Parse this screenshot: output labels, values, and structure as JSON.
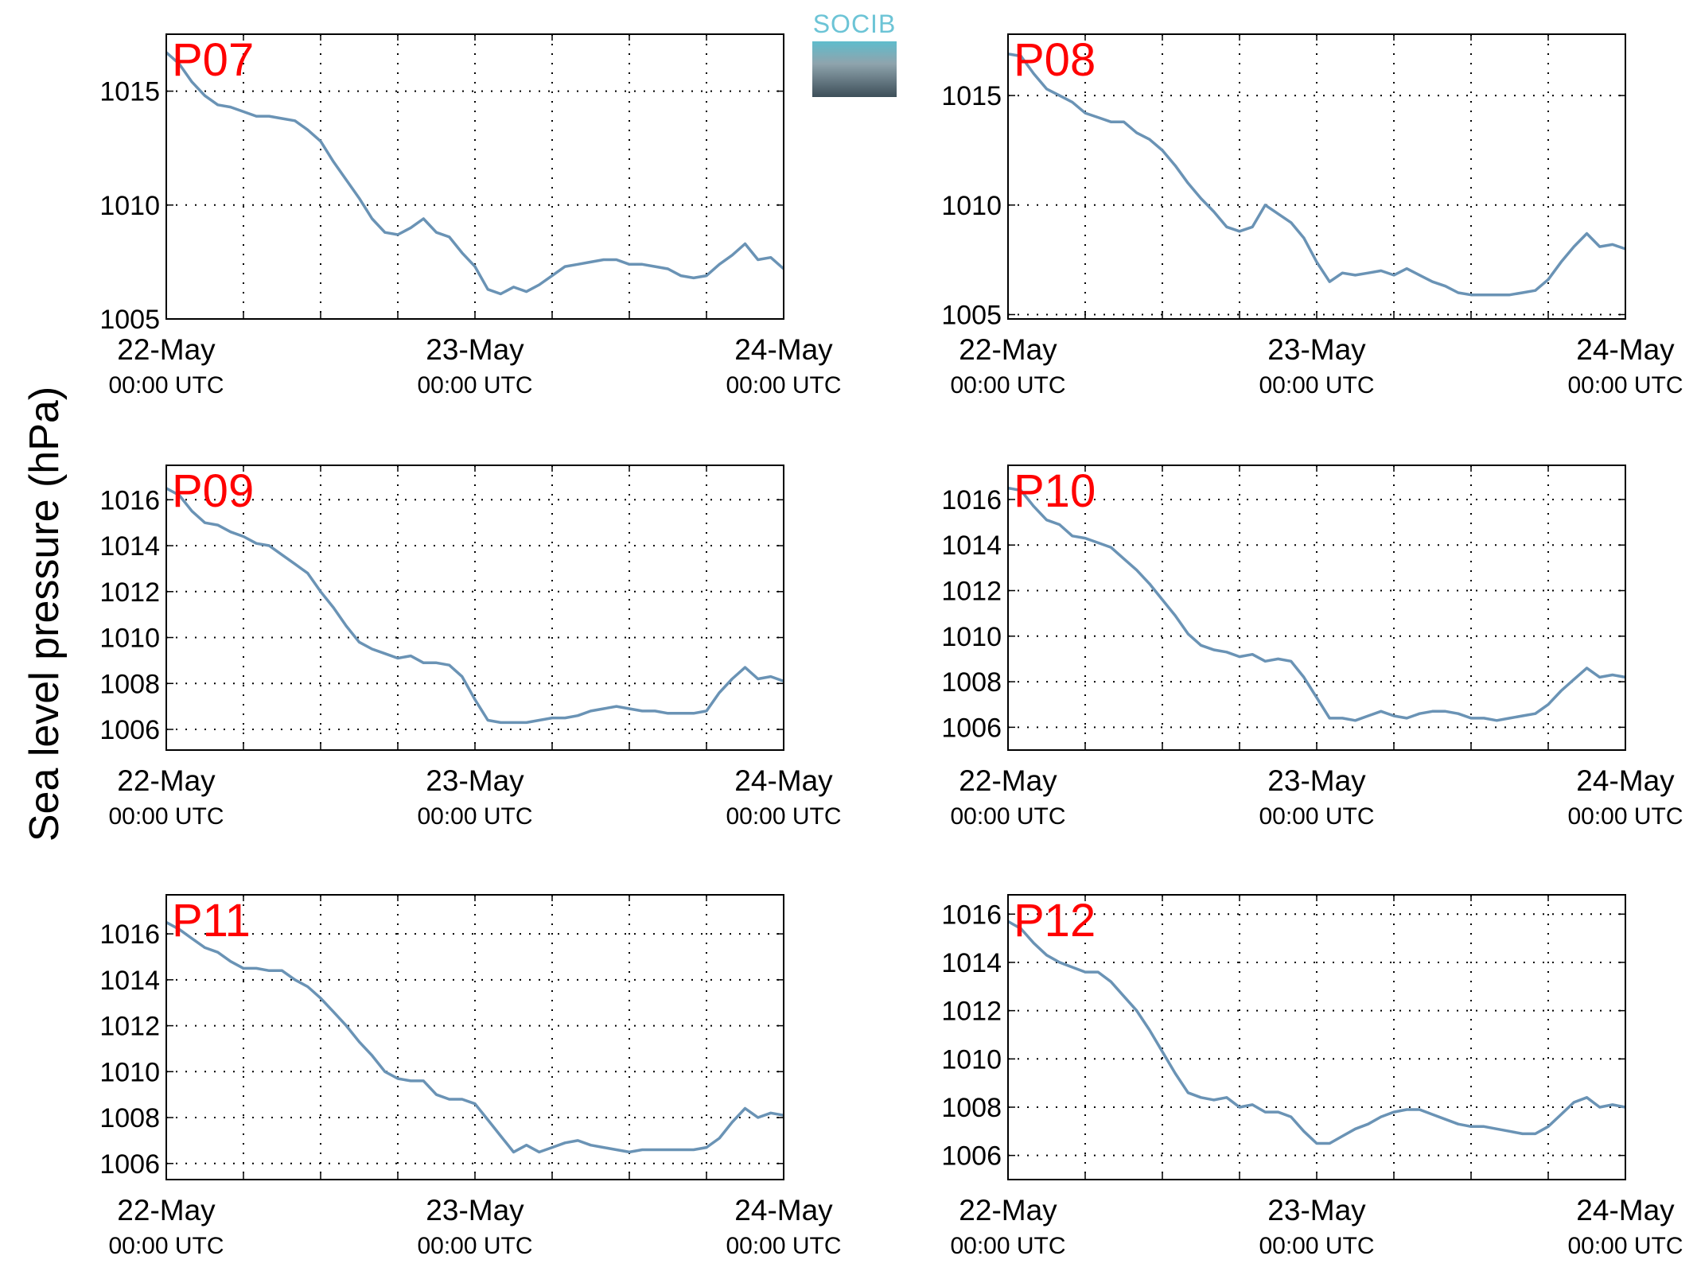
{
  "figure": {
    "ylabel": "Sea level pressure (hPa)",
    "logo": "SOCIB",
    "line_color": "#6a93b5",
    "label_color": "#ff0000",
    "grid": true
  },
  "chart_data": [
    {
      "type": "line",
      "label": "P07",
      "x_ticks": [
        "22-May\n00:00 UTC",
        "23-May\n00:00 UTC",
        "24-May\n00:00 UTC"
      ],
      "xlim": [
        0,
        48
      ],
      "ylim": [
        1005,
        1017.5
      ],
      "yticks": [
        1005,
        1010,
        1015
      ],
      "series": [
        {
          "x": [
            0,
            1,
            2,
            3,
            4,
            5,
            6,
            7,
            8,
            9,
            10,
            11,
            12,
            13,
            14,
            15,
            16,
            17,
            18,
            19,
            20,
            21,
            22,
            23,
            24,
            25,
            26,
            27,
            28,
            29,
            30,
            31,
            32,
            33,
            34,
            35,
            36,
            37,
            38,
            39,
            40,
            41,
            42,
            43,
            44,
            45,
            46,
            47,
            48
          ],
          "y": [
            1016.7,
            1016.2,
            1015.4,
            1014.8,
            1014.4,
            1014.3,
            1014.1,
            1013.9,
            1013.9,
            1013.8,
            1013.7,
            1013.3,
            1012.8,
            1011.9,
            1011.1,
            1010.3,
            1009.4,
            1008.8,
            1008.7,
            1009.0,
            1009.4,
            1008.8,
            1008.6,
            1007.9,
            1007.3,
            1006.3,
            1006.1,
            1006.4,
            1006.2,
            1006.5,
            1006.9,
            1007.3,
            1007.4,
            1007.5,
            1007.6,
            1007.6,
            1007.4,
            1007.4,
            1007.3,
            1007.2,
            1006.9,
            1006.8,
            1006.9,
            1007.4,
            1007.8,
            1008.3,
            1007.6,
            1007.7,
            1007.2
          ]
        }
      ]
    },
    {
      "type": "line",
      "label": "P08",
      "x_ticks": [
        "22-May\n00:00 UTC",
        "23-May\n00:00 UTC",
        "24-May\n00:00 UTC"
      ],
      "xlim": [
        0,
        48
      ],
      "ylim": [
        1004.8,
        1017.8
      ],
      "yticks": [
        1005,
        1010,
        1015
      ],
      "series": [
        {
          "x": [
            0,
            1,
            2,
            3,
            4,
            5,
            6,
            7,
            8,
            9,
            10,
            11,
            12,
            13,
            14,
            15,
            16,
            17,
            18,
            19,
            20,
            21,
            22,
            23,
            24,
            25,
            26,
            27,
            28,
            29,
            30,
            31,
            32,
            33,
            34,
            35,
            36,
            37,
            38,
            39,
            40,
            41,
            42,
            43,
            44,
            45,
            46,
            47,
            48
          ],
          "y": [
            1016.9,
            1016.8,
            1016.0,
            1015.3,
            1015.0,
            1014.7,
            1014.2,
            1014.0,
            1013.8,
            1013.8,
            1013.3,
            1013.0,
            1012.5,
            1011.8,
            1011.0,
            1010.3,
            1009.7,
            1009.0,
            1008.8,
            1009.0,
            1010.0,
            1009.6,
            1009.2,
            1008.5,
            1007.4,
            1006.5,
            1006.9,
            1006.8,
            1006.9,
            1007.0,
            1006.8,
            1007.1,
            1006.8,
            1006.5,
            1006.3,
            1006.0,
            1005.9,
            1005.9,
            1005.9,
            1005.9,
            1006.0,
            1006.1,
            1006.6,
            1007.4,
            1008.1,
            1008.7,
            1008.1,
            1008.2,
            1008.0
          ]
        }
      ]
    },
    {
      "type": "line",
      "label": "P09",
      "x_ticks": [
        "22-May\n00:00 UTC",
        "23-May\n00:00 UTC",
        "24-May\n00:00 UTC"
      ],
      "xlim": [
        0,
        48
      ],
      "ylim": [
        1005.1,
        1017.5
      ],
      "yticks": [
        1006,
        1008,
        1010,
        1012,
        1014,
        1016
      ],
      "series": [
        {
          "x": [
            0,
            1,
            2,
            3,
            4,
            5,
            6,
            7,
            8,
            9,
            10,
            11,
            12,
            13,
            14,
            15,
            16,
            17,
            18,
            19,
            20,
            21,
            22,
            23,
            24,
            25,
            26,
            27,
            28,
            29,
            30,
            31,
            32,
            33,
            34,
            35,
            36,
            37,
            38,
            39,
            40,
            41,
            42,
            43,
            44,
            45,
            46,
            47,
            48
          ],
          "y": [
            1016.5,
            1016.2,
            1015.5,
            1015.0,
            1014.9,
            1014.6,
            1014.4,
            1014.1,
            1014.0,
            1013.6,
            1013.2,
            1012.8,
            1012.0,
            1011.3,
            1010.5,
            1009.8,
            1009.5,
            1009.3,
            1009.1,
            1009.2,
            1008.9,
            1008.9,
            1008.8,
            1008.3,
            1007.3,
            1006.4,
            1006.3,
            1006.3,
            1006.3,
            1006.4,
            1006.5,
            1006.5,
            1006.6,
            1006.8,
            1006.9,
            1007.0,
            1006.9,
            1006.8,
            1006.8,
            1006.7,
            1006.7,
            1006.7,
            1006.8,
            1007.6,
            1008.2,
            1008.7,
            1008.2,
            1008.3,
            1008.1
          ]
        }
      ]
    },
    {
      "type": "line",
      "label": "P10",
      "x_ticks": [
        "22-May\n00:00 UTC",
        "23-May\n00:00 UTC",
        "24-May\n00:00 UTC"
      ],
      "xlim": [
        0,
        48
      ],
      "ylim": [
        1005.0,
        1017.5
      ],
      "yticks": [
        1006,
        1008,
        1010,
        1012,
        1014,
        1016
      ],
      "series": [
        {
          "x": [
            0,
            1,
            2,
            3,
            4,
            5,
            6,
            7,
            8,
            9,
            10,
            11,
            12,
            13,
            14,
            15,
            16,
            17,
            18,
            19,
            20,
            21,
            22,
            23,
            24,
            25,
            26,
            27,
            28,
            29,
            30,
            31,
            32,
            33,
            34,
            35,
            36,
            37,
            38,
            39,
            40,
            41,
            42,
            43,
            44,
            45,
            46,
            47,
            48
          ],
          "y": [
            1016.5,
            1016.4,
            1015.7,
            1015.1,
            1014.9,
            1014.4,
            1014.3,
            1014.1,
            1013.9,
            1013.4,
            1012.9,
            1012.3,
            1011.6,
            1010.9,
            1010.1,
            1009.6,
            1009.4,
            1009.3,
            1009.1,
            1009.2,
            1008.9,
            1009.0,
            1008.9,
            1008.2,
            1007.3,
            1006.4,
            1006.4,
            1006.3,
            1006.5,
            1006.7,
            1006.5,
            1006.4,
            1006.6,
            1006.7,
            1006.7,
            1006.6,
            1006.4,
            1006.4,
            1006.3,
            1006.4,
            1006.5,
            1006.6,
            1007.0,
            1007.6,
            1008.1,
            1008.6,
            1008.2,
            1008.3,
            1008.2
          ]
        }
      ]
    },
    {
      "type": "line",
      "label": "P11",
      "x_ticks": [
        "22-May\n00:00 UTC",
        "23-May\n00:00 UTC",
        "24-May\n00:00 UTC"
      ],
      "xlim": [
        0,
        48
      ],
      "ylim": [
        1005.3,
        1017.7
      ],
      "yticks": [
        1006,
        1008,
        1010,
        1012,
        1014,
        1016
      ],
      "series": [
        {
          "x": [
            0,
            1,
            2,
            3,
            4,
            5,
            6,
            7,
            8,
            9,
            10,
            11,
            12,
            13,
            14,
            15,
            16,
            17,
            18,
            19,
            20,
            21,
            22,
            23,
            24,
            25,
            26,
            27,
            28,
            29,
            30,
            31,
            32,
            33,
            34,
            35,
            36,
            37,
            38,
            39,
            40,
            41,
            42,
            43,
            44,
            45,
            46,
            47,
            48
          ],
          "y": [
            1016.5,
            1016.2,
            1015.8,
            1015.4,
            1015.2,
            1014.8,
            1014.5,
            1014.5,
            1014.4,
            1014.4,
            1014.0,
            1013.7,
            1013.2,
            1012.6,
            1012.0,
            1011.3,
            1010.7,
            1010.0,
            1009.7,
            1009.6,
            1009.6,
            1009.0,
            1008.8,
            1008.8,
            1008.6,
            1007.9,
            1007.2,
            1006.5,
            1006.8,
            1006.5,
            1006.7,
            1006.9,
            1007.0,
            1006.8,
            1006.7,
            1006.6,
            1006.5,
            1006.6,
            1006.6,
            1006.6,
            1006.6,
            1006.6,
            1006.7,
            1007.1,
            1007.8,
            1008.4,
            1008.0,
            1008.2,
            1008.1
          ]
        }
      ]
    },
    {
      "type": "line",
      "label": "P12",
      "x_ticks": [
        "22-May\n00:00 UTC",
        "23-May\n00:00 UTC",
        "24-May\n00:00 UTC"
      ],
      "xlim": [
        0,
        48
      ],
      "ylim": [
        1005.0,
        1016.8
      ],
      "yticks": [
        1006,
        1008,
        1010,
        1012,
        1014,
        1016
      ],
      "series": [
        {
          "x": [
            0,
            1,
            2,
            3,
            4,
            5,
            6,
            7,
            8,
            9,
            10,
            11,
            12,
            13,
            14,
            15,
            16,
            17,
            18,
            19,
            20,
            21,
            22,
            23,
            24,
            25,
            26,
            27,
            28,
            29,
            30,
            31,
            32,
            33,
            34,
            35,
            36,
            37,
            38,
            39,
            40,
            41,
            42,
            43,
            44,
            45,
            46,
            47,
            48
          ],
          "y": [
            1015.7,
            1015.4,
            1014.8,
            1014.3,
            1014.0,
            1013.8,
            1013.6,
            1013.6,
            1013.2,
            1012.6,
            1012.0,
            1011.2,
            1010.3,
            1009.4,
            1008.6,
            1008.4,
            1008.3,
            1008.4,
            1008.0,
            1008.1,
            1007.8,
            1007.8,
            1007.6,
            1007.0,
            1006.5,
            1006.5,
            1006.8,
            1007.1,
            1007.3,
            1007.6,
            1007.8,
            1007.9,
            1007.9,
            1007.7,
            1007.5,
            1007.3,
            1007.2,
            1007.2,
            1007.1,
            1007.0,
            1006.9,
            1006.9,
            1007.2,
            1007.7,
            1008.2,
            1008.4,
            1008.0,
            1008.1,
            1008.0
          ]
        }
      ]
    }
  ]
}
